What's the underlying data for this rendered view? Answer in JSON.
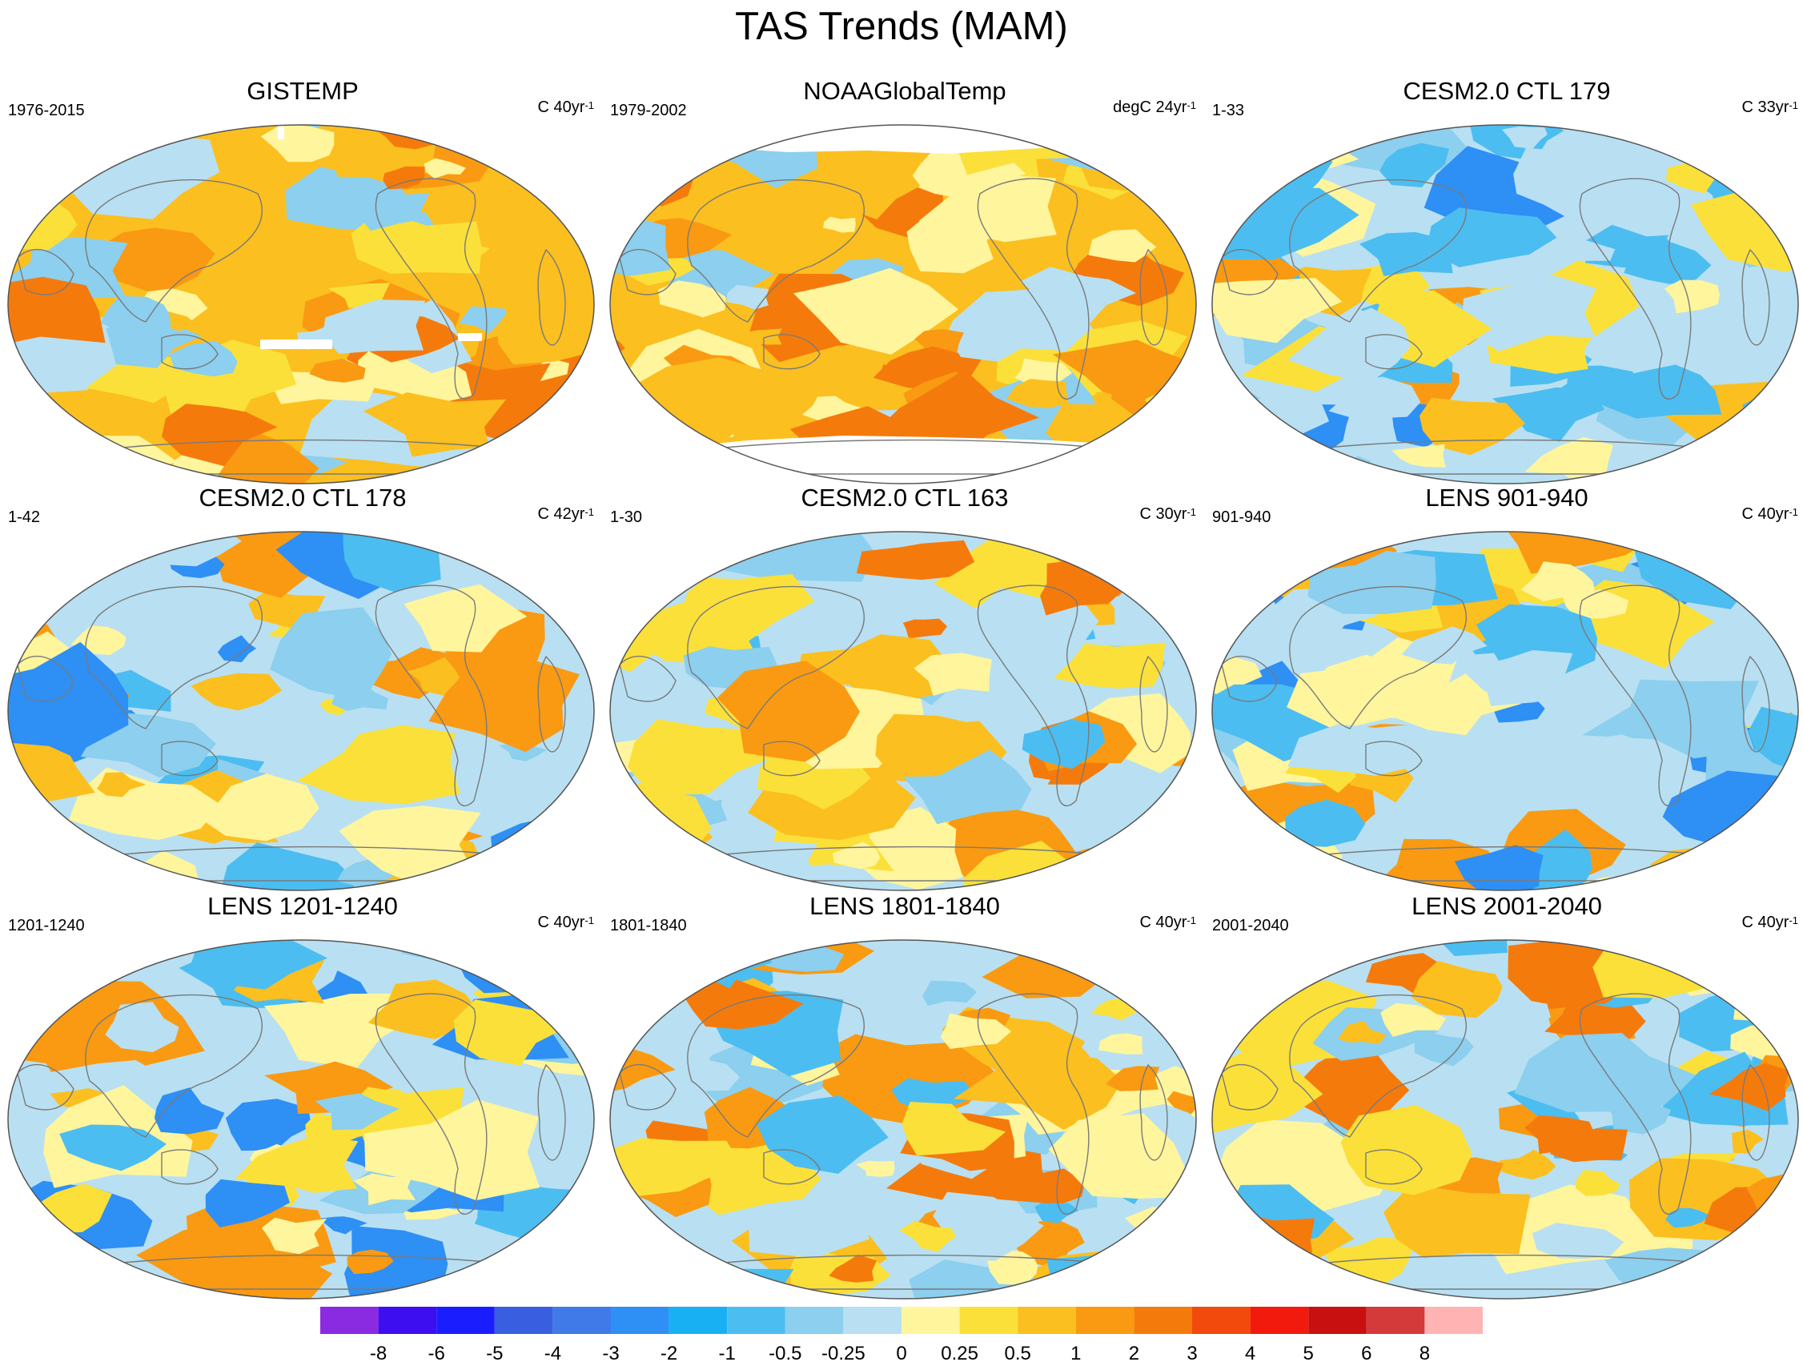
{
  "title": "TAS Trends (MAM)",
  "panels": [
    {
      "title": "GISTEMP",
      "left": "1976-2015",
      "right": "C 40yr",
      "exp": "-1",
      "palette": "warm",
      "seed": 3,
      "missing": "gis"
    },
    {
      "title": "NOAAGlobalTemp",
      "left": "1979-2002",
      "right": "degC 24yr",
      "exp": "-1",
      "palette": "warm2",
      "seed": 7,
      "missing": "noaa"
    },
    {
      "title": "CESM2.0 CTL 179",
      "left": "1-33",
      "right": "C 33yr",
      "exp": "-1",
      "palette": "cool",
      "seed": 11,
      "missing": "none"
    },
    {
      "title": "CESM2.0 CTL 178",
      "left": "1-42",
      "right": "C 42yr",
      "exp": "-1",
      "palette": "cool",
      "seed": 17,
      "missing": "none"
    },
    {
      "title": "CESM2.0 CTL 163",
      "left": "1-30",
      "right": "C 30yr",
      "exp": "-1",
      "palette": "mixed",
      "seed": 23,
      "missing": "none"
    },
    {
      "title": "LENS 901-940",
      "left": "901-940",
      "right": "C 40yr",
      "exp": "-1",
      "palette": "cool",
      "seed": 29,
      "missing": "none"
    },
    {
      "title": "LENS 1201-1240",
      "left": "1201-1240",
      "right": "C 40yr",
      "exp": "-1",
      "palette": "cool",
      "seed": 31,
      "missing": "none"
    },
    {
      "title": "LENS 1801-1840",
      "left": "1801-1840",
      "right": "C 40yr",
      "exp": "-1",
      "palette": "mixed",
      "seed": 37,
      "missing": "none"
    },
    {
      "title": "LENS 2001-2040",
      "left": "2001-2040",
      "right": "C 40yr",
      "exp": "-1",
      "palette": "mixed",
      "seed": 41,
      "missing": "none"
    }
  ],
  "chart_data": {
    "type": "heatmap",
    "title": "TAS Trends (MAM)",
    "projection": "Robinson-like global maps",
    "colorbar": {
      "levels": [
        "-8",
        "-6",
        "-5",
        "-4",
        "-3",
        "-2",
        "-1",
        "-0.5",
        "-0.25",
        "0",
        "0.25",
        "0.5",
        "1",
        "2",
        "3",
        "4",
        "5",
        "6",
        "8"
      ],
      "colors": [
        "#8a2be2",
        "#3d0ef0",
        "#1a1eff",
        "#3a5ee0",
        "#3f7ae8",
        "#2e8ff5",
        "#18b0f2",
        "#4cbdf0",
        "#8ccfee",
        "#b8e0f2",
        "#fff59d",
        "#fbe03a",
        "#fbbf1f",
        "#f99a12",
        "#f57a0c",
        "#f24a0c",
        "#f21a0c",
        "#c81010",
        "#d43a3a",
        "#ffb3b3"
      ]
    }
  }
}
